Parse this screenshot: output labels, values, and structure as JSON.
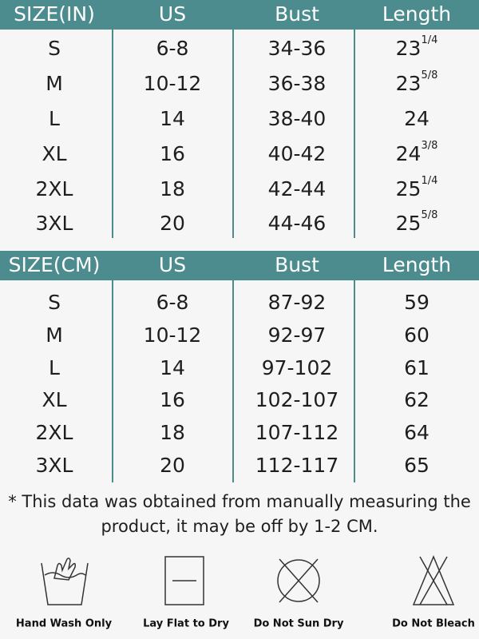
{
  "tables": [
    {
      "headers": [
        "SIZE(IN)",
        "US",
        "Bust",
        "Length"
      ],
      "rows": [
        [
          "S",
          "6-8",
          "34-36",
          {
            "whole": "23",
            "fraction": "1/4"
          }
        ],
        [
          "M",
          "10-12",
          "36-38",
          {
            "whole": "23",
            "fraction": "5/8"
          }
        ],
        [
          "L",
          "14",
          "38-40",
          {
            "whole": "24"
          }
        ],
        [
          "XL",
          "16",
          "40-42",
          {
            "whole": "24",
            "fraction": "3/8"
          }
        ],
        [
          "2XL",
          "18",
          "42-44",
          {
            "whole": "25",
            "fraction": "1/4"
          }
        ],
        [
          "3XL",
          "20",
          "44-46",
          {
            "whole": "25",
            "fraction": "5/8"
          }
        ]
      ]
    },
    {
      "headers": [
        "SIZE(CM)",
        "US",
        "Bust",
        "Length"
      ],
      "rows": [
        [
          "S",
          "6-8",
          "87-92",
          "59"
        ],
        [
          "M",
          "10-12",
          "92-97",
          "60"
        ],
        [
          "L",
          "14",
          "97-102",
          "61"
        ],
        [
          "XL",
          "16",
          "102-107",
          "62"
        ],
        [
          "2XL",
          "18",
          "107-112",
          "64"
        ],
        [
          "3XL",
          "20",
          "112-117",
          "65"
        ]
      ]
    }
  ],
  "note": {
    "line1": "* This data was obtained from manually measuring the",
    "line2": "product, it may be off by 1-2 CM."
  },
  "care": [
    "Hand Wash Only",
    "Lay Flat to Dry",
    "Do Not Sun Dry",
    "Do Not Bleach"
  ]
}
